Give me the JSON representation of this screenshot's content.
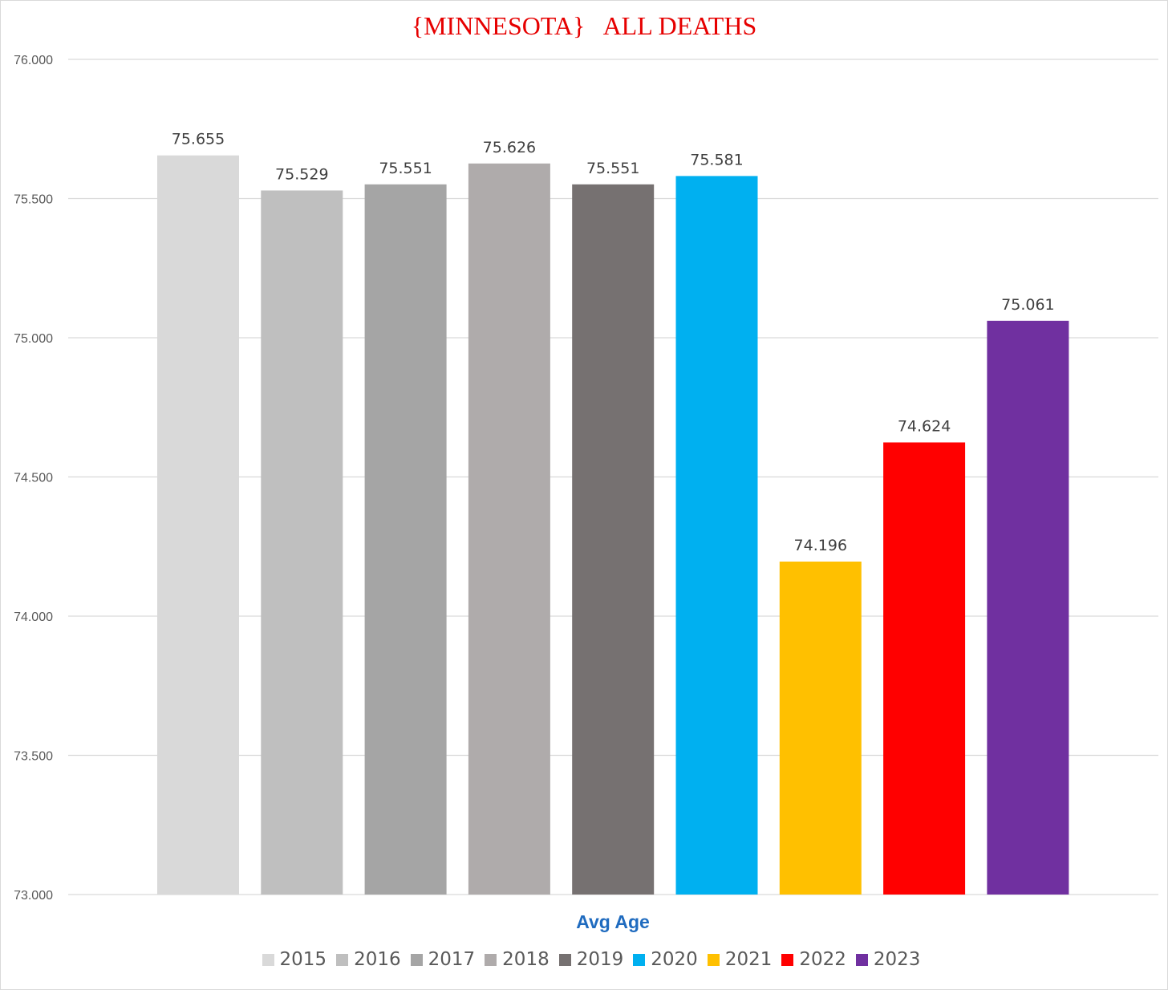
{
  "chart_data": {
    "type": "bar",
    "title": "{MINNESOTA}   ALL DEATHS",
    "xlabel": "Avg Age",
    "ylabel": "",
    "ylim": [
      73,
      76
    ],
    "y_ticks": [
      "73.000",
      "73.500",
      "74.000",
      "74.500",
      "75.000",
      "75.500",
      "76.000"
    ],
    "y_tick_values": [
      73,
      73.5,
      74,
      74.5,
      75,
      75.5,
      76
    ],
    "grid": true,
    "legend_position": "bottom",
    "categories": [
      "Avg Age"
    ],
    "series": [
      {
        "name": "2015",
        "values": [
          75.655
        ],
        "label": "75.655",
        "color": "#d9d9d9"
      },
      {
        "name": "2016",
        "values": [
          75.529
        ],
        "label": "75.529",
        "color": "#bfbfbf"
      },
      {
        "name": "2017",
        "values": [
          75.551
        ],
        "label": "75.551",
        "color": "#a5a5a5"
      },
      {
        "name": "2018",
        "values": [
          75.626
        ],
        "label": "75.626",
        "color": "#afabab"
      },
      {
        "name": "2019",
        "values": [
          75.551
        ],
        "label": "75.551",
        "color": "#767171"
      },
      {
        "name": "2020",
        "values": [
          75.581
        ],
        "label": "75.581",
        "color": "#00b0f0"
      },
      {
        "name": "2021",
        "values": [
          74.196
        ],
        "label": "74.196",
        "color": "#ffc000"
      },
      {
        "name": "2022",
        "values": [
          74.624
        ],
        "label": "74.624",
        "color": "#ff0000"
      },
      {
        "name": "2023",
        "values": [
          75.061
        ],
        "label": "75.061",
        "color": "#7030a0"
      }
    ]
  }
}
